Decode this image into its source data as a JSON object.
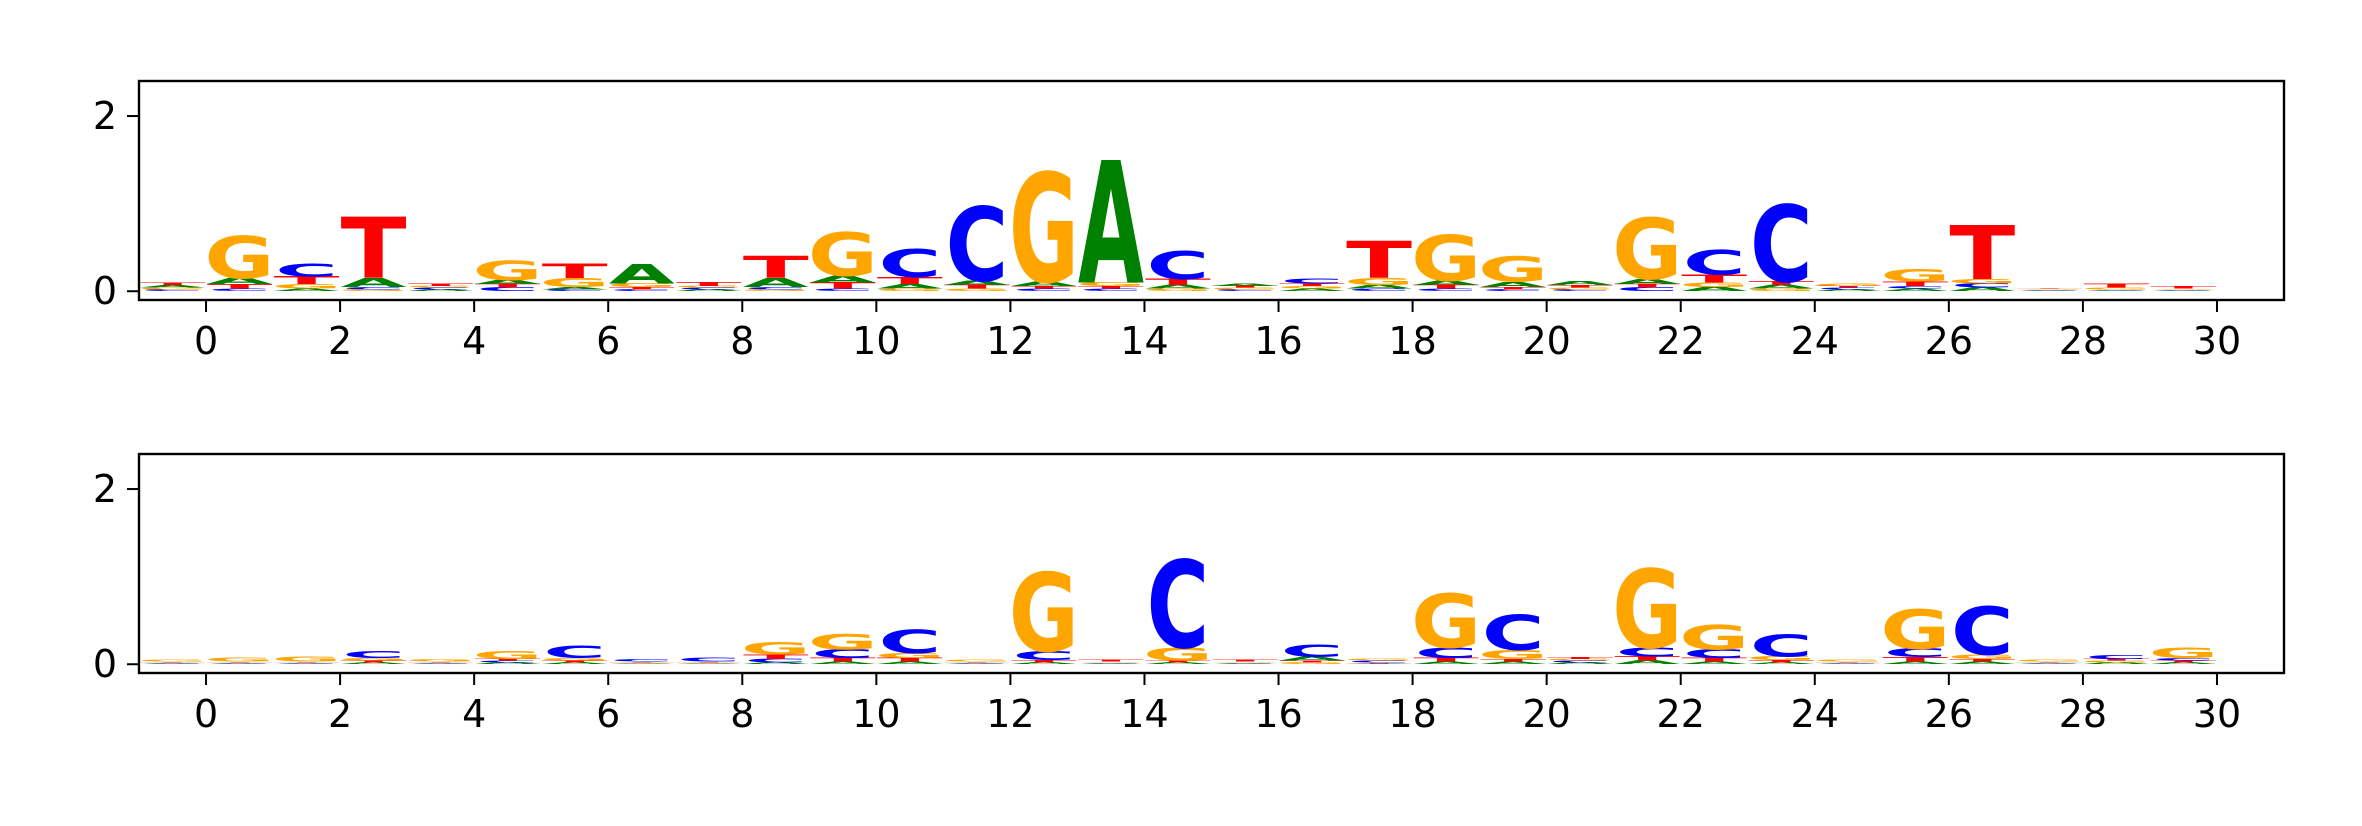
{
  "colors": {
    "A": "#008000",
    "C": "#0000ff",
    "G": "#ffa500",
    "T": "#ff0000"
  },
  "chart_data": [
    {
      "type": "sequence-logo",
      "xlim": [
        -1,
        31
      ],
      "ylim": [
        -0.1,
        2.4
      ],
      "xticks": [
        "0",
        "2",
        "4",
        "6",
        "8",
        "10",
        "12",
        "14",
        "16",
        "18",
        "20",
        "22",
        "24",
        "26",
        "28",
        "30"
      ],
      "yticks": [
        "0",
        "2"
      ],
      "positions": [
        {
          "x": 0,
          "A": 0.03,
          "C": 0.02,
          "G": 0.02,
          "T": 0.03
        },
        {
          "x": 1,
          "A": 0.07,
          "C": 0.03,
          "G": 0.48,
          "T": 0.05
        },
        {
          "x": 2,
          "A": 0.03,
          "C": 0.15,
          "G": 0.05,
          "T": 0.09
        },
        {
          "x": 3,
          "A": 0.1,
          "C": 0.03,
          "G": 0.02,
          "T": 0.7
        },
        {
          "x": 4,
          "A": 0.02,
          "C": 0.02,
          "G": 0.02,
          "T": 0.03
        },
        {
          "x": 5,
          "A": 0.05,
          "C": 0.04,
          "G": 0.22,
          "T": 0.04
        },
        {
          "x": 6,
          "A": 0.03,
          "C": 0.02,
          "G": 0.1,
          "T": 0.16
        },
        {
          "x": 7,
          "A": 0.22,
          "C": 0.02,
          "G": 0.04,
          "T": 0.03
        },
        {
          "x": 8,
          "A": 0.02,
          "C": 0.02,
          "G": 0.02,
          "T": 0.04
        },
        {
          "x": 9,
          "A": 0.1,
          "C": 0.03,
          "G": 0.02,
          "T": 0.25
        },
        {
          "x": 10,
          "A": 0.08,
          "C": 0.03,
          "G": 0.5,
          "T": 0.07
        },
        {
          "x": 11,
          "A": 0.05,
          "C": 0.32,
          "G": 0.03,
          "T": 0.08
        },
        {
          "x": 12,
          "A": 0.05,
          "C": 0.85,
          "G": 0.03,
          "T": 0.04
        },
        {
          "x": 13,
          "A": 0.05,
          "C": 0.03,
          "G": 1.25,
          "T": 0.03
        },
        {
          "x": 14,
          "A": 1.4,
          "C": 0.03,
          "G": 0.04,
          "T": 0.03
        },
        {
          "x": 15,
          "A": 0.04,
          "C": 0.32,
          "G": 0.03,
          "T": 0.07
        },
        {
          "x": 16,
          "A": 0.03,
          "C": 0.02,
          "G": 0.02,
          "T": 0.02
        },
        {
          "x": 17,
          "A": 0.03,
          "C": 0.06,
          "G": 0.03,
          "T": 0.03
        },
        {
          "x": 18,
          "A": 0.04,
          "C": 0.03,
          "G": 0.08,
          "T": 0.42
        },
        {
          "x": 19,
          "A": 0.05,
          "C": 0.03,
          "G": 0.52,
          "T": 0.04
        },
        {
          "x": 20,
          "A": 0.06,
          "C": 0.02,
          "G": 0.29,
          "T": 0.03
        },
        {
          "x": 21,
          "A": 0.04,
          "C": 0.02,
          "G": 0.02,
          "T": 0.03
        },
        {
          "x": 22,
          "A": 0.06,
          "C": 0.04,
          "G": 0.7,
          "T": 0.04
        },
        {
          "x": 23,
          "A": 0.05,
          "C": 0.28,
          "G": 0.05,
          "T": 0.09
        },
        {
          "x": 24,
          "A": 0.04,
          "C": 0.88,
          "G": 0.03,
          "T": 0.04
        },
        {
          "x": 25,
          "A": 0.02,
          "C": 0.02,
          "G": 0.03,
          "T": 0.02
        },
        {
          "x": 26,
          "A": 0.03,
          "C": 0.03,
          "G": 0.14,
          "T": 0.05
        },
        {
          "x": 27,
          "A": 0.04,
          "C": 0.05,
          "G": 0.05,
          "T": 0.62
        },
        {
          "x": 28,
          "A": 0.01,
          "C": 0.01,
          "G": 0.01,
          "T": 0.01
        },
        {
          "x": 29,
          "A": 0.01,
          "C": 0.01,
          "G": 0.02,
          "T": 0.04
        },
        {
          "x": 30,
          "A": 0.01,
          "C": 0.01,
          "G": 0.01,
          "T": 0.03
        }
      ]
    },
    {
      "type": "sequence-logo",
      "xlim": [
        -1,
        31
      ],
      "ylim": [
        -0.1,
        2.4
      ],
      "xticks": [
        "0",
        "2",
        "4",
        "6",
        "8",
        "10",
        "12",
        "14",
        "16",
        "18",
        "20",
        "22",
        "24",
        "26",
        "28",
        "30"
      ],
      "yticks": [
        "0",
        "2"
      ],
      "positions": [
        {
          "x": 0,
          "A": 0.01,
          "C": 0.01,
          "G": 0.02,
          "T": 0.01
        },
        {
          "x": 1,
          "A": 0.01,
          "C": 0.01,
          "G": 0.04,
          "T": 0.01
        },
        {
          "x": 2,
          "A": 0.01,
          "C": 0.01,
          "G": 0.06,
          "T": 0.01
        },
        {
          "x": 3,
          "A": 0.02,
          "C": 0.08,
          "G": 0.03,
          "T": 0.02
        },
        {
          "x": 4,
          "A": 0.01,
          "C": 0.01,
          "G": 0.03,
          "T": 0.01
        },
        {
          "x": 5,
          "A": 0.02,
          "C": 0.02,
          "G": 0.09,
          "T": 0.02
        },
        {
          "x": 6,
          "A": 0.02,
          "C": 0.14,
          "G": 0.03,
          "T": 0.02
        },
        {
          "x": 7,
          "A": 0.01,
          "C": 0.03,
          "G": 0.01,
          "T": 0.01
        },
        {
          "x": 8,
          "A": 0.01,
          "C": 0.04,
          "G": 0.01,
          "T": 0.01
        },
        {
          "x": 9,
          "A": 0.02,
          "C": 0.04,
          "G": 0.14,
          "T": 0.05
        },
        {
          "x": 10,
          "A": 0.03,
          "C": 0.1,
          "G": 0.18,
          "T": 0.04
        },
        {
          "x": 11,
          "A": 0.03,
          "C": 0.27,
          "G": 0.06,
          "T": 0.04
        },
        {
          "x": 12,
          "A": 0.01,
          "C": 0.01,
          "G": 0.02,
          "T": 0.01
        },
        {
          "x": 13,
          "A": 0.02,
          "C": 0.1,
          "G": 0.9,
          "T": 0.03
        },
        {
          "x": 14,
          "A": 0.01,
          "C": 0.01,
          "G": 0.01,
          "T": 0.02
        },
        {
          "x": 15,
          "A": 0.02,
          "C": 1.0,
          "G": 0.15,
          "T": 0.02
        },
        {
          "x": 16,
          "A": 0.01,
          "C": 0.01,
          "G": 0.01,
          "T": 0.02
        },
        {
          "x": 17,
          "A": 0.04,
          "C": 0.14,
          "G": 0.02,
          "T": 0.02
        },
        {
          "x": 18,
          "A": 0.01,
          "C": 0.02,
          "G": 0.02,
          "T": 0.01
        },
        {
          "x": 19,
          "A": 0.03,
          "C": 0.12,
          "G": 0.62,
          "T": 0.04
        },
        {
          "x": 20,
          "A": 0.03,
          "C": 0.4,
          "G": 0.1,
          "T": 0.03
        },
        {
          "x": 21,
          "A": 0.02,
          "C": 0.02,
          "G": 0.02,
          "T": 0.02
        },
        {
          "x": 22,
          "A": 0.04,
          "C": 0.1,
          "G": 0.9,
          "T": 0.05
        },
        {
          "x": 23,
          "A": 0.03,
          "C": 0.1,
          "G": 0.28,
          "T": 0.04
        },
        {
          "x": 24,
          "A": 0.02,
          "C": 0.25,
          "G": 0.04,
          "T": 0.03
        },
        {
          "x": 25,
          "A": 0.01,
          "C": 0.01,
          "G": 0.02,
          "T": 0.01
        },
        {
          "x": 26,
          "A": 0.03,
          "C": 0.1,
          "G": 0.45,
          "T": 0.05
        },
        {
          "x": 27,
          "A": 0.03,
          "C": 0.55,
          "G": 0.05,
          "T": 0.03
        },
        {
          "x": 28,
          "A": 0.01,
          "C": 0.01,
          "G": 0.02,
          "T": 0.01
        },
        {
          "x": 29,
          "A": 0.02,
          "C": 0.04,
          "G": 0.02,
          "T": 0.02
        },
        {
          "x": 30,
          "A": 0.02,
          "C": 0.03,
          "G": 0.12,
          "T": 0.02
        }
      ]
    }
  ]
}
